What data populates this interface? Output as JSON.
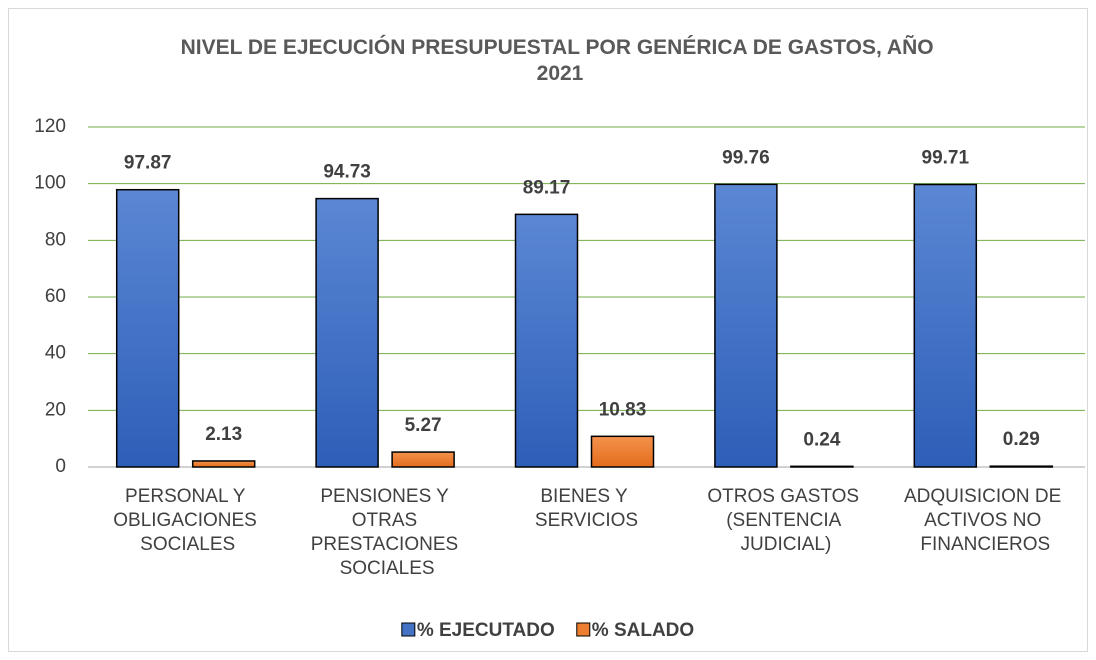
{
  "chart_data": {
    "type": "bar",
    "title": "NIVEL DE EJECUCIÓN PRESUPUESTAL POR GENÉRICA DE GASTOS, AÑO 2021",
    "categories": [
      "PERSONAL Y OBLIGACIONES SOCIALES",
      "PENSIONES Y OTRAS PRESTACIONES SOCIALES",
      "BIENES Y SERVICIOS",
      "OTROS GASTOS (SENTENCIA JUDICIAL)",
      "ADQUISICION DE ACTIVOS NO FINANCIEROS"
    ],
    "series": [
      {
        "name": "% EJECUTADO",
        "color": "#4472c4",
        "values": [
          97.87,
          94.73,
          89.17,
          99.76,
          99.71
        ]
      },
      {
        "name": "% SALADO",
        "color": "#ed7d31",
        "values": [
          2.13,
          5.27,
          10.83,
          0.24,
          0.29
        ]
      }
    ],
    "ylim": [
      0,
      120
    ],
    "yticks": [
      0,
      20,
      40,
      60,
      80,
      100,
      120
    ],
    "grid": true,
    "legend": "bottom"
  }
}
